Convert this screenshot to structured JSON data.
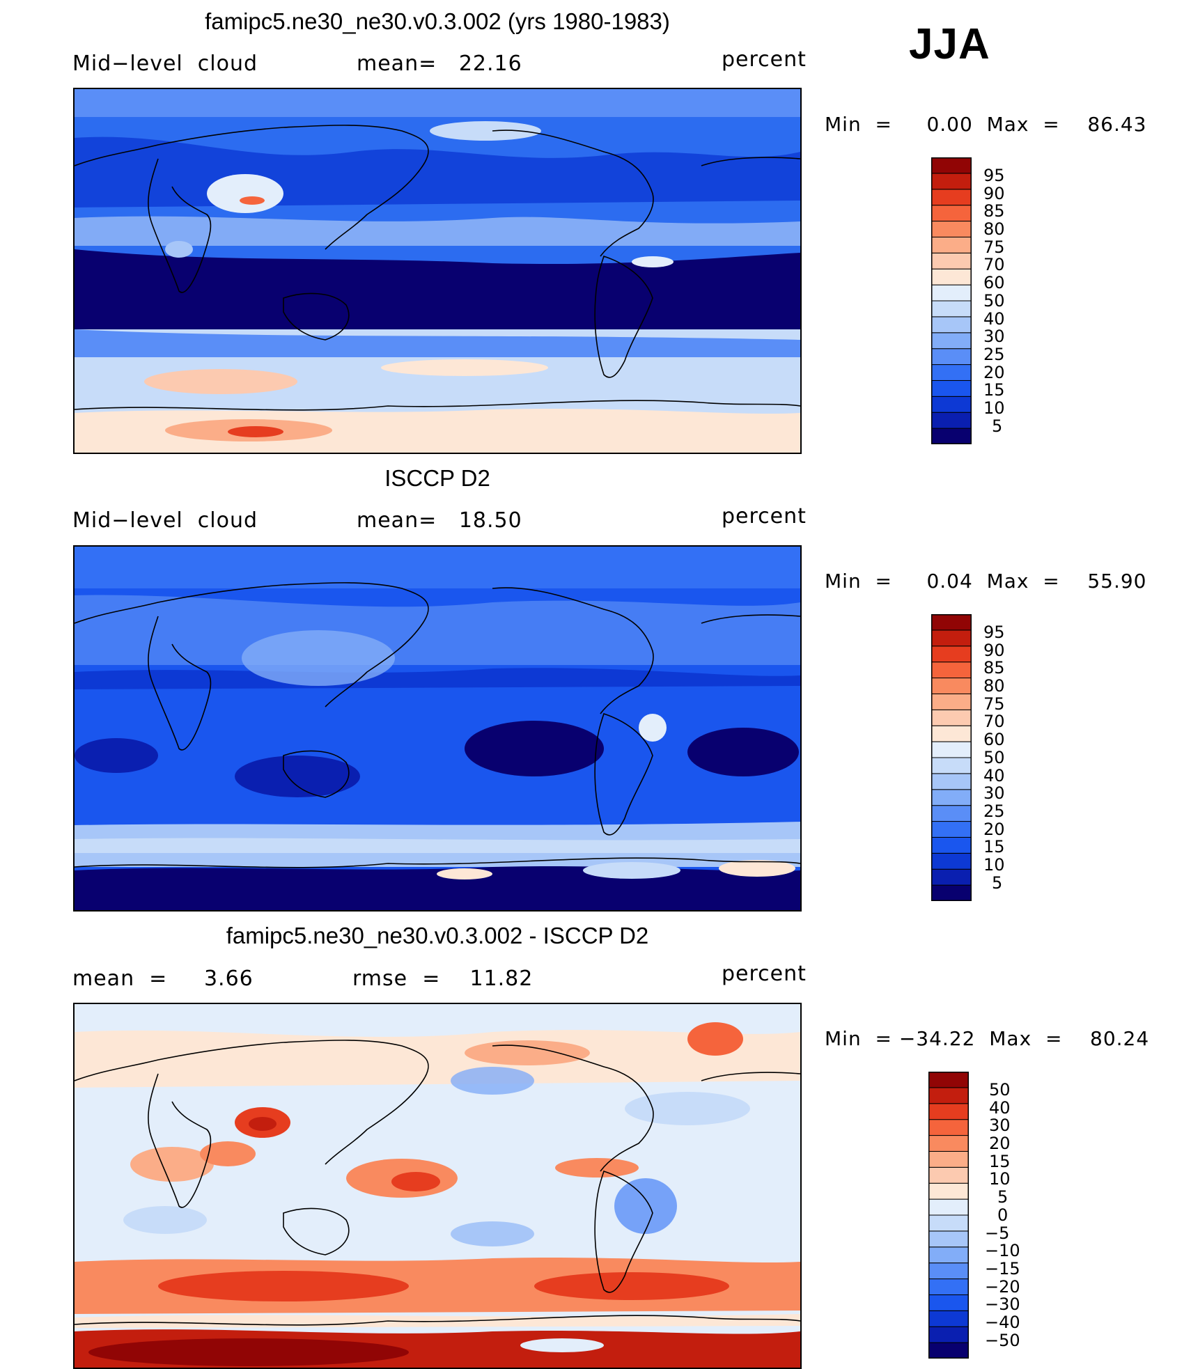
{
  "season": "JJA",
  "colors": {
    "seq": [
      "#08006f",
      "#0a1fb0",
      "#0d39d4",
      "#1a56ee",
      "#3370f5",
      "#5a8ef7",
      "#82adf8",
      "#a7c6f8",
      "#c7dcf9",
      "#e3eefb",
      "#fde7d6",
      "#fccab0",
      "#fbad88",
      "#f98a5f",
      "#f5643c",
      "#e63d1f",
      "#c31e0e",
      "#910505"
    ],
    "diff": [
      "#08006f",
      "#0a1fb0",
      "#0d39d4",
      "#1a56ee",
      "#3370f5",
      "#5a8ef7",
      "#82adf8",
      "#a7c6f8",
      "#c7dcf9",
      "#e3eefb",
      "#fde7d6",
      "#fccab0",
      "#fbad88",
      "#f98a5f",
      "#f5643c",
      "#e63d1f",
      "#c31e0e",
      "#910505"
    ]
  },
  "panels": [
    {
      "title": "famipc5.ne30_ne30.v0.3.002 (yrs 1980-1983)",
      "left_label": "Mid−level  cloud",
      "center_label": "mean=   22.16",
      "units": "percent",
      "min_max": "Min  =     0.00  Max  =    86.43",
      "levels": [
        "95",
        "90",
        "85",
        "80",
        "75",
        "70",
        "60",
        "50",
        "40",
        "30",
        "25",
        "20",
        "15",
        "10",
        "5"
      ],
      "palette": "seq",
      "field": {
        "mean": 22.16,
        "min": 0.0,
        "max": 86.43
      }
    },
    {
      "title": "ISCCP D2",
      "left_label": "Mid−level  cloud",
      "center_label": "mean=   18.50",
      "units": "percent",
      "min_max": "Min  =     0.04  Max  =    55.90",
      "levels": [
        "95",
        "90",
        "85",
        "80",
        "75",
        "70",
        "60",
        "50",
        "40",
        "30",
        "25",
        "20",
        "15",
        "10",
        "5"
      ],
      "palette": "seq",
      "field": {
        "mean": 18.5,
        "min": 0.04,
        "max": 55.9
      }
    },
    {
      "title": "famipc5.ne30_ne30.v0.3.002 - ISCCP D2",
      "left_label": "mean  =     3.66",
      "center_label": "rmse  =    11.82",
      "units": "percent",
      "min_max": "Min  = −34.22  Max  =    80.24",
      "levels": [
        "50",
        "40",
        "30",
        "20",
        "15",
        "10",
        "5",
        "0",
        "−5",
        "−10",
        "−15",
        "−20",
        "−30",
        "−40",
        "−50"
      ],
      "palette": "diff",
      "field": {
        "mean": 3.66,
        "rmse": 11.82,
        "min": -34.22,
        "max": 80.24
      }
    }
  ]
}
